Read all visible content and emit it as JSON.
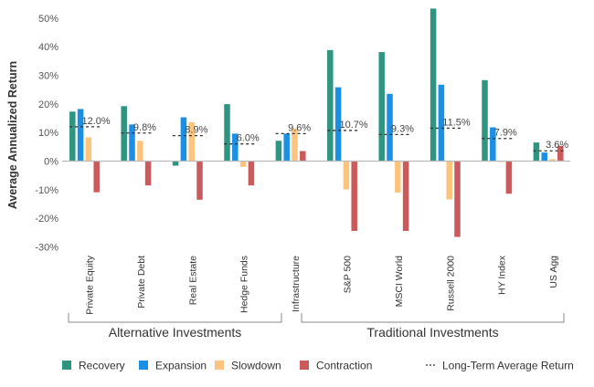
{
  "chart_data": {
    "type": "bar",
    "title": "",
    "xlabel": "",
    "ylabel": "Average Annualized Return",
    "ylim": [
      -30,
      50
    ],
    "yticks": [
      50,
      40,
      30,
      20,
      10,
      0,
      -10,
      -20,
      -30
    ],
    "ytick_labels": [
      "50%",
      "40%",
      "30%",
      "20%",
      "10%",
      "0%",
      "-10%",
      "-20%",
      "-30%"
    ],
    "grid": false,
    "legend_position": "bottom",
    "categories": [
      "Private Equity",
      "Private Debt",
      "Real Estate",
      "Hedge Funds",
      "Infrastructure",
      "S&P 500",
      "MSCI World",
      "Russell 2000",
      "HY Index",
      "US Agg"
    ],
    "groups": [
      {
        "label": "Alternative Investments",
        "categories": [
          "Private Equity",
          "Private Debt",
          "Real Estate",
          "Hedge Funds",
          "Infrastructure"
        ]
      },
      {
        "label": "Traditional Investments",
        "categories": [
          "S&P 500",
          "MSCI World",
          "Russell 2000",
          "HY Index",
          "US Agg"
        ]
      }
    ],
    "series": [
      {
        "name": "Recovery",
        "color": "#2e9680",
        "values": [
          17.3,
          19.2,
          -1.6,
          19.9,
          7.1,
          38.8,
          38.1,
          53.3,
          28.3,
          6.5
        ]
      },
      {
        "name": "Expansion",
        "color": "#1a8fe3",
        "values": [
          18.2,
          12.8,
          15.3,
          9.6,
          9.6,
          25.8,
          23.5,
          26.7,
          11.8,
          3.0
        ]
      },
      {
        "name": "Slowdown",
        "color": "#fdc47d",
        "values": [
          8.3,
          7.1,
          13.6,
          -2.0,
          11.4,
          -9.9,
          -11.0,
          -13.4,
          -0.3,
          0.7
        ]
      },
      {
        "name": "Contraction",
        "color": "#cc5a5a",
        "values": [
          -10.9,
          -8.5,
          -13.5,
          -8.5,
          3.5,
          -24.4,
          -24.4,
          -26.5,
          -11.4,
          5.3
        ]
      }
    ],
    "long_term_average": {
      "name": "Long-Term Average Return",
      "values": [
        12.0,
        9.8,
        8.9,
        6.0,
        9.6,
        10.7,
        9.3,
        11.5,
        7.9,
        3.6
      ],
      "labels": [
        "12.0%",
        "9.8%",
        "8.9%",
        "6.0%",
        "9.6%",
        "10.7%",
        "9.3%",
        "11.5%",
        "7.9%",
        "3.6%"
      ]
    }
  },
  "legend": [
    {
      "label": "Recovery",
      "type": "swatch",
      "color": "#2e9680"
    },
    {
      "label": "Expansion",
      "type": "swatch",
      "color": "#1a8fe3"
    },
    {
      "label": "Slowdown",
      "type": "swatch",
      "color": "#fdc47d"
    },
    {
      "label": "Contraction",
      "type": "swatch",
      "color": "#cc5a5a"
    },
    {
      "label": "Long-Term Average Return",
      "type": "dashed",
      "color": "#333333"
    }
  ]
}
